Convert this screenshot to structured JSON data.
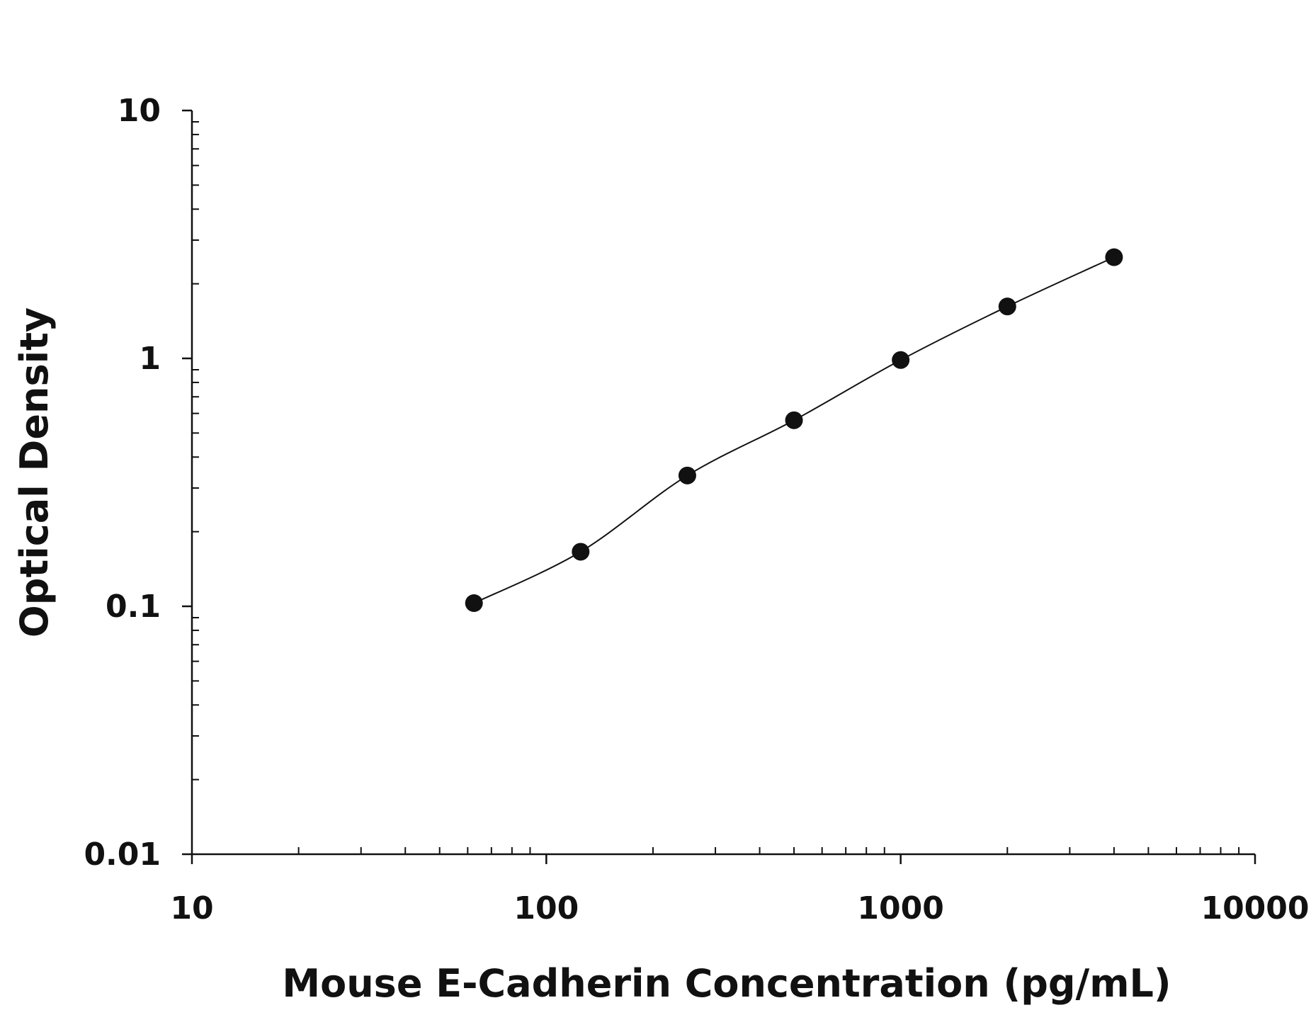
{
  "chart_data": {
    "type": "scatter",
    "xlabel": "Mouse E-Cadherin Concentration (pg/mL)",
    "ylabel": "Optical Density",
    "x_scale": "log",
    "y_scale": "log",
    "xlim": [
      10,
      10000
    ],
    "ylim": [
      0.01,
      10
    ],
    "x_ticks": [
      10,
      100,
      1000,
      10000
    ],
    "x_tick_labels": [
      "10",
      "100",
      "1000",
      "10000"
    ],
    "y_ticks": [
      0.01,
      0.1,
      1,
      10
    ],
    "y_tick_labels": [
      "0.01",
      "0.1",
      "1",
      "10"
    ],
    "grid": false,
    "series": [
      {
        "x": [
          62.5,
          125,
          250,
          500,
          1000,
          2000,
          4000
        ],
        "y": [
          0.103,
          0.166,
          0.337,
          0.563,
          0.985,
          1.62,
          2.56
        ],
        "marker": "filled-circle",
        "fit_line": true,
        "color": "#111111"
      }
    ]
  }
}
